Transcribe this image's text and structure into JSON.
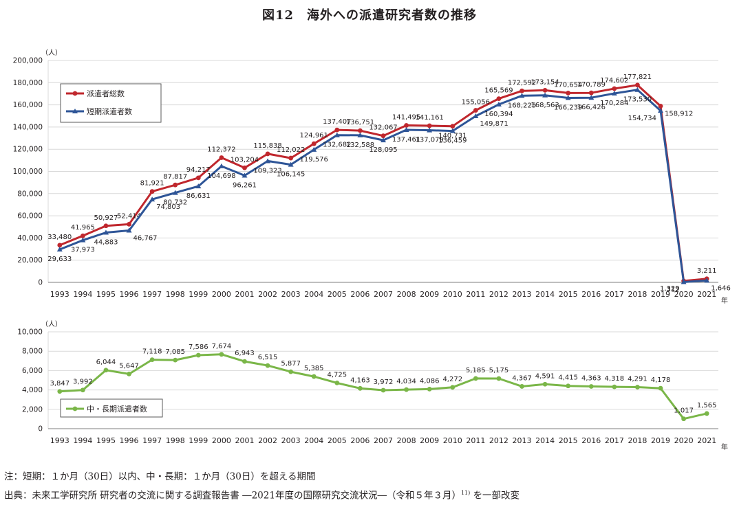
{
  "title": "図12　海外への派遣研究者数の推移",
  "notes": {
    "note": "注：短期：１か月（30日）以内、中・長期：１か月（30日）を超える期間",
    "source_main": "出典：未来工学研究所 研究者の交流に関する調査報告書 ―2021年度の国際研究交流状況―（令和５年３月）",
    "source_ref": "11)",
    "source_tail": "を一部改変"
  },
  "colors": {
    "total": "#c0272d",
    "short": "#2e5597",
    "long": "#7ab648",
    "grid": "#d9d9d9",
    "axis": "#231f20"
  },
  "chart_data": [
    {
      "type": "line",
      "id": "top",
      "unit": "（人）",
      "xlabel_suffix": "年",
      "ylim": [
        0,
        200000
      ],
      "yticks": [
        0,
        20000,
        40000,
        60000,
        80000,
        100000,
        120000,
        140000,
        160000,
        180000,
        200000
      ],
      "ytick_labels": [
        "0",
        "20,000",
        "40,000",
        "60,000",
        "80,000",
        "100,000",
        "120,000",
        "140,000",
        "160,000",
        "180,000",
        "200,000"
      ],
      "grid": true,
      "legend_position": "top-left",
      "categories": [
        "1993",
        "1994",
        "1995",
        "1996",
        "1997",
        "1998",
        "1999",
        "2000",
        "2001",
        "2002",
        "2003",
        "2004",
        "2005",
        "2006",
        "2007",
        "2008",
        "2009",
        "2010",
        "2011",
        "2012",
        "2013",
        "2014",
        "2015",
        "2016",
        "2017",
        "2018",
        "2019",
        "2020",
        "2021"
      ],
      "series": [
        {
          "name": "派遣者総数",
          "marker": "circle",
          "color_key": "total",
          "values": [
            33480,
            41965,
            50927,
            52414,
            81921,
            87817,
            94217,
            112372,
            103204,
            115838,
            112022,
            124961,
            137407,
            136751,
            132067,
            141495,
            141161,
            140731,
            155056,
            165569,
            172592,
            173154,
            170654,
            170789,
            174602,
            177821,
            158912,
            1329,
            3211
          ],
          "labels": [
            "33,480",
            "41,965",
            "50,927",
            "52,414",
            "81,921",
            "87,817",
            "94,217",
            "112,372",
            "103,204",
            "115,838",
            "112,022",
            "124,961",
            "137,407",
            "136,751",
            "132,067",
            "141,495",
            "141,161",
            "140,731",
            "155,056",
            "165,569",
            "172,592",
            "173,154",
            "170,654",
            "170,789",
            "174,602",
            "177,821",
            "158,912",
            "1,329",
            "3,211"
          ]
        },
        {
          "name": "短期派遣者数",
          "marker": "triangle",
          "color_key": "short",
          "values": [
            29633,
            37973,
            44883,
            46767,
            74803,
            80732,
            86631,
            104698,
            96261,
            109323,
            106145,
            119576,
            132682,
            132588,
            128095,
            137461,
            137079,
            136459,
            149871,
            160394,
            168225,
            168563,
            166239,
            166426,
            170284,
            173530,
            154734,
            312,
            1646
          ],
          "labels": [
            "29,633",
            "37,973",
            "44,883",
            "46,767",
            "74,803",
            "80,732",
            "86,631",
            "104,698",
            "96,261",
            "109,323",
            "106,145",
            "119,576",
            "132,682",
            "132,588",
            "128,095",
            "137,461",
            "137,079",
            "136,459",
            "149,871",
            "160,394",
            "168,225",
            "168,563",
            "166,239",
            "166,426",
            "170,284",
            "173,530",
            "154,734",
            "312",
            "1,646"
          ]
        }
      ]
    },
    {
      "type": "line",
      "id": "bottom",
      "unit": "（人）",
      "xlabel_suffix": "年",
      "ylim": [
        0,
        10000
      ],
      "yticks": [
        0,
        2000,
        4000,
        6000,
        8000,
        10000
      ],
      "ytick_labels": [
        "0",
        "2,000",
        "4,000",
        "6,000",
        "8,000",
        "10,000"
      ],
      "grid": true,
      "legend_position": "bottom-left",
      "categories": [
        "1993",
        "1994",
        "1995",
        "1996",
        "1997",
        "1998",
        "1999",
        "2000",
        "2001",
        "2002",
        "2003",
        "2004",
        "2005",
        "2006",
        "2007",
        "2008",
        "2009",
        "2010",
        "2011",
        "2012",
        "2013",
        "2014",
        "2015",
        "2016",
        "2017",
        "2018",
        "2019",
        "2020",
        "2021"
      ],
      "series": [
        {
          "name": "中・長期派遣者数",
          "marker": "circle",
          "color_key": "long",
          "values": [
            3847,
            3992,
            6044,
            5647,
            7118,
            7085,
            7586,
            7674,
            6943,
            6515,
            5877,
            5385,
            4725,
            4163,
            3972,
            4034,
            4086,
            4272,
            5185,
            5175,
            4367,
            4591,
            4415,
            4363,
            4318,
            4291,
            4178,
            1017,
            1565
          ],
          "labels": [
            "3,847",
            "3,992",
            "6,044",
            "5,647",
            "7,118",
            "7,085",
            "7,586",
            "7,674",
            "6,943",
            "6,515",
            "5,877",
            "5,385",
            "4,725",
            "4,163",
            "3,972",
            "4,034",
            "4,086",
            "4,272",
            "5,185",
            "5,175",
            "4,367",
            "4,591",
            "4,415",
            "4,363",
            "4,318",
            "4,291",
            "4,178",
            "1,017",
            "1,565"
          ]
        }
      ]
    }
  ]
}
